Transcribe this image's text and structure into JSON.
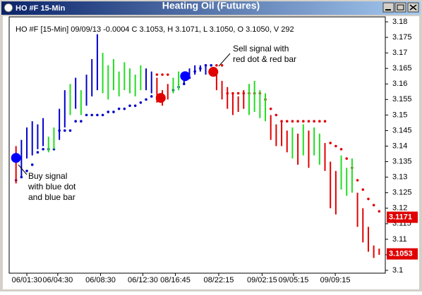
{
  "window": {
    "title": "HO #F 15-Min"
  },
  "chart_data": {
    "type": "ohlc",
    "title": "Heating Oil (Futures)",
    "info": "HO #F [15-Min] 09/09/13  -0.0004  C 3.1053, H 3.1071, L 3.1050, O 3.1050, V 292",
    "annotations": [
      {
        "lines": [
          "Sell signal with",
          "red dot & red bar"
        ]
      },
      {
        "lines": [
          "Buy signal",
          "with blue dot",
          "and blue bar"
        ]
      }
    ],
    "ylim": [
      3.1,
      3.18
    ],
    "yticks": [
      3.1,
      3.105,
      3.11,
      3.115,
      3.12,
      3.125,
      3.13,
      3.135,
      3.14,
      3.145,
      3.15,
      3.155,
      3.16,
      3.165,
      3.17,
      3.175,
      3.18
    ],
    "xlim": [
      -1,
      68
    ],
    "xticks": [
      {
        "value": 2,
        "label": "06/01:30"
      },
      {
        "value": 7.7,
        "label": "06/04:30"
      },
      {
        "value": 15.6,
        "label": "06/08:30"
      },
      {
        "value": 23.4,
        "label": "06/12:30"
      },
      {
        "value": 29.4,
        "label": "08/16:45"
      },
      {
        "value": 37.4,
        "label": "08/22:15"
      },
      {
        "value": 45.4,
        "label": "09/02:15"
      },
      {
        "value": 51.2,
        "label": "09/05:15"
      },
      {
        "value": 58.9,
        "label": "09/09:15"
      }
    ],
    "price_markers": [
      {
        "value": 3.1171,
        "color": "#e00000"
      },
      {
        "value": 3.1053,
        "color": "#e00000"
      }
    ],
    "bars": {
      "high": [
        3.14,
        3.142,
        3.146,
        3.148,
        3.147,
        3.149,
        3.143,
        3.146,
        3.152,
        3.158,
        3.16,
        3.162,
        3.158,
        3.163,
        3.168,
        3.176,
        3.17,
        3.166,
        3.168,
        3.164,
        3.167,
        3.165,
        3.163,
        3.166,
        3.165,
        3.164,
        3.162,
        3.158,
        3.16,
        3.162,
        3.164,
        3.163,
        3.165,
        3.166,
        3.166,
        3.166,
        3.165,
        3.164,
        3.161,
        3.159,
        3.157,
        3.156,
        3.158,
        3.16,
        3.161,
        3.158,
        3.157,
        3.15,
        3.147,
        3.148,
        3.145,
        3.146,
        3.144,
        3.147,
        3.145,
        3.146,
        3.144,
        3.141,
        3.135,
        3.132,
        3.137,
        3.133,
        3.136,
        3.125,
        3.12,
        3.114,
        3.108,
        3.107
      ],
      "low": [
        3.128,
        3.13,
        3.136,
        3.137,
        3.139,
        3.14,
        3.138,
        3.139,
        3.142,
        3.146,
        3.15,
        3.152,
        3.15,
        3.153,
        3.156,
        3.158,
        3.157,
        3.155,
        3.158,
        3.156,
        3.158,
        3.157,
        3.156,
        3.158,
        3.158,
        3.157,
        3.154,
        3.153,
        3.155,
        3.157,
        3.158,
        3.16,
        3.162,
        3.163,
        3.164,
        3.163,
        3.163,
        3.158,
        3.155,
        3.152,
        3.15,
        3.151,
        3.152,
        3.15,
        3.151,
        3.149,
        3.148,
        3.142,
        3.14,
        3.14,
        3.138,
        3.136,
        3.134,
        3.137,
        3.133,
        3.137,
        3.134,
        3.132,
        3.12,
        3.118,
        3.126,
        3.124,
        3.125,
        3.114,
        3.109,
        3.106,
        3.104,
        3.105
      ],
      "colors": [
        "#e00000",
        "#0000cc",
        "#0000cc",
        "#0000cc",
        "#0000cc",
        "#0000cc",
        "#22dd22",
        "#22dd22",
        "#0000cc",
        "#0000cc",
        "#22dd22",
        "#0000cc",
        "#22dd22",
        "#0000cc",
        "#0000cc",
        "#0000cc",
        "#22dd22",
        "#22dd22",
        "#22dd22",
        "#22dd22",
        "#22dd22",
        "#22dd22",
        "#22dd22",
        "#22dd22",
        "#0000cc",
        "#0000cc",
        "#e00000",
        "#e00000",
        "#e00000",
        "#22dd22",
        "#22dd22",
        "#0000cc",
        "#0000cc",
        "#0000cc",
        "#0000cc",
        "#0000cc",
        "#0000cc",
        "#e00000",
        "#e00000",
        "#e00000",
        "#e00000",
        "#e00000",
        "#e00000",
        "#22dd22",
        "#22dd22",
        "#22dd22",
        "#22dd22",
        "#e00000",
        "#e00000",
        "#e00000",
        "#e00000",
        "#22dd22",
        "#e00000",
        "#22dd22",
        "#e00000",
        "#22dd22",
        "#22dd22",
        "#e00000",
        "#e00000",
        "#e00000",
        "#22dd22",
        "#22dd22",
        "#22dd22",
        "#e00000",
        "#e00000",
        "#e00000",
        "#e00000",
        "#e00000"
      ]
    },
    "stops": {
      "values": [
        3.129,
        3.13,
        3.132,
        3.134,
        3.138,
        3.139,
        3.139,
        3.139,
        3.145,
        3.145,
        3.145,
        3.148,
        3.148,
        3.15,
        3.15,
        3.15,
        3.15,
        3.151,
        3.151,
        3.152,
        3.152,
        3.153,
        3.153,
        3.154,
        3.155,
        3.156,
        3.163,
        3.163,
        3.163,
        3.158,
        3.159,
        3.16,
        3.162,
        3.164,
        3.165,
        3.166,
        3.166,
        3.166,
        3.166,
        3.157,
        3.157,
        3.157,
        3.157,
        3.157,
        3.157,
        3.157,
        3.155,
        3.152,
        3.15,
        3.148,
        3.148,
        3.148,
        3.148,
        3.148,
        3.148,
        3.148,
        3.148,
        3.148,
        3.141,
        3.14,
        3.139,
        3.136,
        3.133,
        3.129,
        3.126,
        3.123,
        3.121,
        3.119
      ],
      "colors": [
        "#0000cc",
        "#0000cc",
        "#0000cc",
        "#0000cc",
        "#0000cc",
        "#0000cc",
        "#0000cc",
        "#0000cc",
        "#0000cc",
        "#0000cc",
        "#0000cc",
        "#0000cc",
        "#0000cc",
        "#0000cc",
        "#0000cc",
        "#0000cc",
        "#0000cc",
        "#0000cc",
        "#0000cc",
        "#0000cc",
        "#0000cc",
        "#0000cc",
        "#0000cc",
        "#0000cc",
        "#0000cc",
        "#0000cc",
        "#e00000",
        "#e00000",
        "#e00000",
        "#0000cc",
        "#0000cc",
        "#0000cc",
        "#0000cc",
        "#0000cc",
        "#0000cc",
        "#0000cc",
        "#0000cc",
        "#e00000",
        "#e00000",
        "#e00000",
        "#e00000",
        "#e00000",
        "#e00000",
        "#e00000",
        "#e00000",
        "#e00000",
        "#e00000",
        "#e00000",
        "#e00000",
        "#e00000",
        "#e00000",
        "#e00000",
        "#e00000",
        "#e00000",
        "#e00000",
        "#e00000",
        "#e00000",
        "#e00000",
        "#e00000",
        "#e00000",
        "#e00000",
        "#e00000",
        "#e00000",
        "#e00000",
        "#e00000",
        "#e00000",
        "#e00000",
        "#e00000"
      ]
    },
    "signals": [
      {
        "x": 0,
        "value": 3.1362,
        "color": "#0000ff"
      },
      {
        "x": 26.7,
        "value": 3.1555,
        "color": "#e00000"
      },
      {
        "x": 31.2,
        "value": 3.1625,
        "color": "#0000ff"
      },
      {
        "x": 36.4,
        "value": 3.1639,
        "color": "#e00000"
      }
    ]
  }
}
